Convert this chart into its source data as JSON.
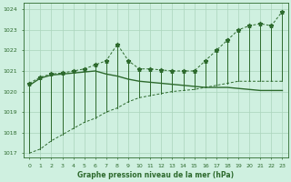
{
  "title": "Graphe pression niveau de la mer (hPa)",
  "bg_color": "#cff0e0",
  "line_color": "#2d6a2d",
  "grid_color": "#aad4bb",
  "xlim": [
    -0.5,
    23.5
  ],
  "ylim": [
    1016.8,
    1024.3
  ],
  "yticks": [
    1017,
    1018,
    1019,
    1020,
    1021,
    1022,
    1023,
    1024
  ],
  "xtick_labels": [
    "0",
    "1",
    "2",
    "3",
    "4",
    "5",
    "6",
    "7",
    "8",
    "9",
    "10",
    "11",
    "12",
    "13",
    "14",
    "15",
    "16",
    "17",
    "18",
    "19",
    "20",
    "21",
    "22",
    "23"
  ],
  "hours": [
    0,
    1,
    2,
    3,
    4,
    5,
    6,
    7,
    8,
    9,
    10,
    11,
    12,
    13,
    14,
    15,
    16,
    17,
    18,
    19,
    20,
    21,
    22,
    23
  ],
  "high_vals": [
    1020.4,
    1020.7,
    1020.85,
    1020.9,
    1021.0,
    1021.1,
    1021.3,
    1021.5,
    1022.3,
    1021.5,
    1021.1,
    1021.1,
    1021.05,
    1021.0,
    1021.0,
    1021.0,
    1021.5,
    1022.0,
    1022.5,
    1023.0,
    1023.2,
    1023.3,
    1023.2,
    1023.9
  ],
  "low_vals": [
    1017.0,
    1017.2,
    1017.6,
    1017.9,
    1018.2,
    1018.5,
    1018.7,
    1019.0,
    1019.2,
    1019.5,
    1019.7,
    1019.8,
    1019.9,
    1020.0,
    1020.05,
    1020.1,
    1020.2,
    1020.3,
    1020.4,
    1020.5,
    1020.5,
    1020.5,
    1020.5,
    1020.5
  ],
  "mean_vals": [
    1020.3,
    1020.65,
    1020.8,
    1020.85,
    1020.9,
    1020.95,
    1021.0,
    1020.85,
    1020.75,
    1020.6,
    1020.5,
    1020.45,
    1020.4,
    1020.35,
    1020.3,
    1020.25,
    1020.2,
    1020.2,
    1020.2,
    1020.15,
    1020.1,
    1020.05,
    1020.05,
    1020.05
  ]
}
